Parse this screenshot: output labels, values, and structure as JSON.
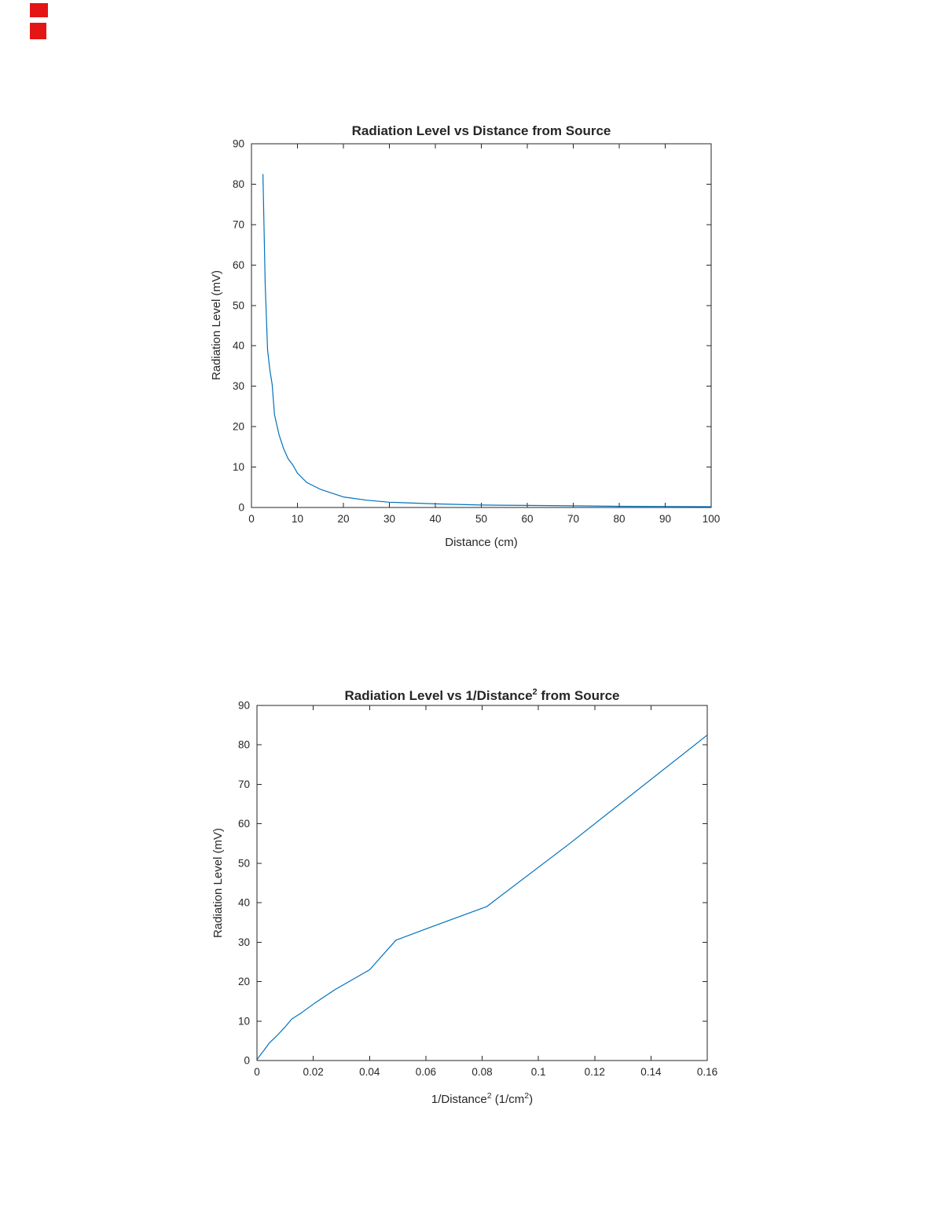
{
  "page": {
    "background": "#ffffff",
    "corner_marks": {
      "color": "#e31515",
      "count": 2
    }
  },
  "style": {
    "axis_color": "#262626",
    "tick_label_color": "#262626"
  },
  "chart_data": [
    {
      "type": "line",
      "title": "Radiation Level vs Distance from Source",
      "xlabel": "Distance (cm)",
      "ylabel": "Radiation Level (mV)",
      "xlim": [
        0,
        100
      ],
      "ylim": [
        0,
        90
      ],
      "xticks": [
        0,
        10,
        20,
        30,
        40,
        50,
        60,
        70,
        80,
        90,
        100
      ],
      "xtick_labels": [
        "0",
        "10",
        "20",
        "30",
        "40",
        "50",
        "60",
        "70",
        "80",
        "90",
        "100"
      ],
      "yticks": [
        0,
        10,
        20,
        30,
        40,
        50,
        60,
        70,
        80,
        90
      ],
      "ytick_labels": [
        "0",
        "10",
        "20",
        "30",
        "40",
        "50",
        "60",
        "70",
        "80",
        "90"
      ],
      "grid": false,
      "legend": null,
      "line_color": "#0072BD",
      "x": [
        2.5,
        3,
        3.5,
        4,
        4.5,
        5,
        6,
        7,
        8,
        9,
        10,
        12,
        15,
        20,
        25,
        30,
        40,
        50,
        60,
        70,
        80,
        90,
        100
      ],
      "y": [
        82.5,
        55,
        39,
        34,
        30.5,
        23,
        18,
        14.5,
        12,
        10.5,
        8.5,
        6.2,
        4.5,
        2.6,
        1.8,
        1.3,
        0.9,
        0.6,
        0.5,
        0.4,
        0.3,
        0.25,
        0.2
      ]
    },
    {
      "type": "line",
      "title_parts": {
        "pre": "Radiation Level vs 1/Distance",
        "sup": "2",
        "post": " from Source"
      },
      "xlabel_parts": {
        "pre": "1/Distance",
        "sup1": "2",
        "mid": " (1/cm",
        "sup2": "2",
        "post": ")"
      },
      "ylabel": "Radiation Level (mV)",
      "xlim": [
        0,
        0.16
      ],
      "ylim": [
        0,
        90
      ],
      "xticks": [
        0,
        0.02,
        0.04,
        0.06,
        0.08,
        0.1,
        0.12,
        0.14,
        0.16
      ],
      "xtick_labels": [
        "0",
        "0.02",
        "0.04",
        "0.06",
        "0.08",
        "0.1",
        "0.12",
        "0.14",
        "0.16"
      ],
      "yticks": [
        0,
        10,
        20,
        30,
        40,
        50,
        60,
        70,
        80,
        90
      ],
      "ytick_labels": [
        "0",
        "10",
        "20",
        "30",
        "40",
        "50",
        "60",
        "70",
        "80",
        "90"
      ],
      "grid": false,
      "legend": null,
      "line_color": "#0072BD",
      "x": [
        0.0001,
        0.00012,
        0.00016,
        0.0002,
        0.00028,
        0.0004,
        0.00063,
        0.00111,
        0.0016,
        0.0025,
        0.00444,
        0.00694,
        0.01,
        0.01235,
        0.01563,
        0.02041,
        0.02778,
        0.04,
        0.04938,
        0.0625,
        0.08163,
        0.11111,
        0.16
      ],
      "y": [
        0.2,
        0.25,
        0.3,
        0.4,
        0.5,
        0.6,
        0.9,
        1.3,
        1.8,
        2.6,
        4.5,
        6.2,
        8.5,
        10.5,
        12,
        14.5,
        18,
        23,
        30.5,
        34,
        39,
        55,
        82.5
      ]
    }
  ]
}
